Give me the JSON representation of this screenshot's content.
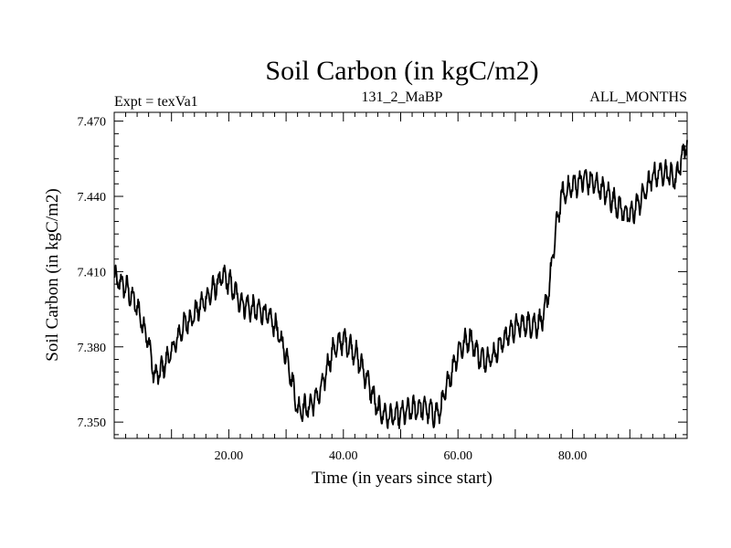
{
  "chart_data": {
    "type": "line",
    "title": "Soil Carbon (in kgC/m2)",
    "subtitle_left": "Expt = texVa1",
    "subtitle_center": "131_2_MaBP",
    "subtitle_right": "ALL_MONTHS",
    "xlabel": "Time (in years since start)",
    "ylabel": "Soil Carbon (in kgC/m2)",
    "xlim": [
      0,
      100
    ],
    "ylim": [
      7.3435,
      7.4735
    ],
    "x_ticks": [
      20,
      40,
      60,
      80
    ],
    "x_tick_labels": [
      "20.00",
      "40.00",
      "60.00",
      "80.00"
    ],
    "y_ticks": [
      7.35,
      7.38,
      7.41,
      7.44,
      7.47
    ],
    "y_tick_labels": [
      "7.350",
      "7.380",
      "7.410",
      "7.440",
      "7.470"
    ],
    "series": [
      {
        "name": "Soil Carbon",
        "color": "#000000",
        "x": [
          0,
          2,
          4,
          6,
          7,
          8,
          10,
          12,
          14,
          16,
          18,
          19,
          20,
          22,
          24,
          26,
          28,
          30,
          31,
          32,
          34,
          36,
          38,
          40,
          42,
          44,
          46,
          48,
          50,
          52,
          54,
          56,
          57,
          58,
          60,
          62,
          64,
          66,
          68,
          70,
          72,
          74,
          75,
          76,
          77,
          78,
          80,
          82,
          84,
          86,
          88,
          90,
          92,
          94,
          96,
          98,
          99,
          100
        ],
        "values": [
          7.407,
          7.404,
          7.396,
          7.382,
          7.368,
          7.37,
          7.378,
          7.388,
          7.393,
          7.399,
          7.405,
          7.408,
          7.406,
          7.398,
          7.395,
          7.394,
          7.389,
          7.377,
          7.367,
          7.355,
          7.356,
          7.362,
          7.378,
          7.383,
          7.378,
          7.368,
          7.355,
          7.352,
          7.353,
          7.355,
          7.356,
          7.353,
          7.355,
          7.364,
          7.378,
          7.384,
          7.375,
          7.376,
          7.383,
          7.388,
          7.389,
          7.389,
          7.392,
          7.405,
          7.425,
          7.44,
          7.444,
          7.447,
          7.445,
          7.441,
          7.436,
          7.432,
          7.439,
          7.448,
          7.45,
          7.447,
          7.455,
          7.462
        ]
      }
    ]
  }
}
